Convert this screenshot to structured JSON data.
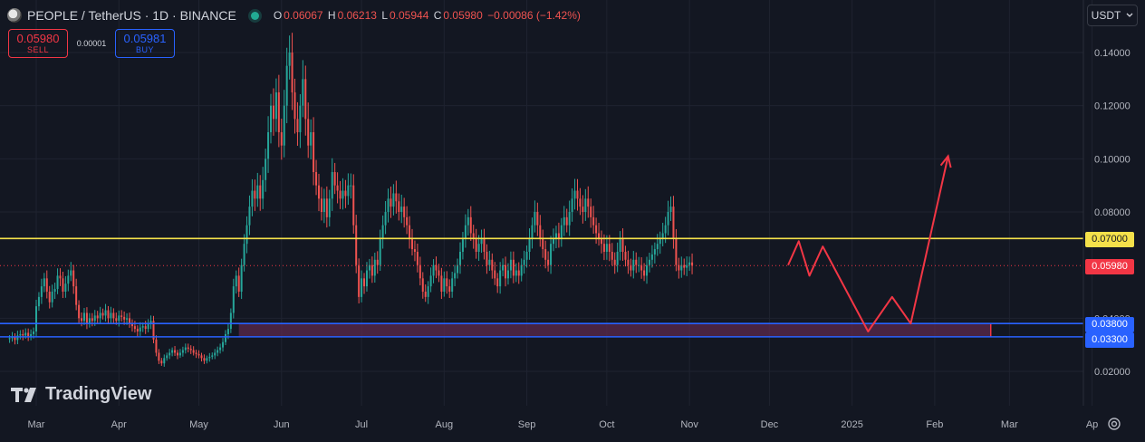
{
  "header": {
    "symbol_title": "PEOPLE / TetherUS · 1D · BINANCE",
    "ohlc": {
      "o_label": "O",
      "o_value": "0.06067",
      "h_label": "H",
      "h_value": "0.06213",
      "l_label": "L",
      "l_value": "0.05944",
      "c_label": "C",
      "c_value": "0.05980",
      "change": "−0.00086 (−1.42%)"
    }
  },
  "trade_panel": {
    "sell_price": "0.05980",
    "sell_label": "SELL",
    "spread": "0.00001",
    "buy_price": "0.05981",
    "buy_label": "BUY"
  },
  "currency_selector": {
    "value": "USDT"
  },
  "branding": {
    "name": "TradingView"
  },
  "price_tags": {
    "resistance": "0.07000",
    "current": "0.05980",
    "support_top": "0.03800",
    "support_bottom": "0.03300"
  },
  "colors": {
    "background": "#131722",
    "up": "#26a69a",
    "down": "#ef5350",
    "resistance_line": "#f5e14a",
    "support_line": "#2962ff",
    "arrow": "#f23645",
    "zone_fill": "#5c2a4c"
  },
  "chart_data": {
    "type": "candlestick",
    "title": "PEOPLE / TetherUS · 1D · BINANCE",
    "ylim": [
      0.013,
      0.152
    ],
    "y_ticks": [
      0.02,
      0.04,
      0.08,
      0.1,
      0.12,
      0.14
    ],
    "y_tick_labels": [
      "0.02000",
      "0.04000",
      "0.08000",
      "0.10000",
      "0.12000",
      "0.14000"
    ],
    "x_range": [
      "2024-02-20",
      "2025-04-10"
    ],
    "x_ticks": [
      {
        "date": "2024-03-01",
        "label": "Mar"
      },
      {
        "date": "2024-04-01",
        "label": "Apr"
      },
      {
        "date": "2024-05-01",
        "label": "May"
      },
      {
        "date": "2024-06-01",
        "label": "Jun"
      },
      {
        "date": "2024-07-01",
        "label": "Jul"
      },
      {
        "date": "2024-08-01",
        "label": "Aug"
      },
      {
        "date": "2024-09-01",
        "label": "Sep"
      },
      {
        "date": "2024-10-01",
        "label": "Oct"
      },
      {
        "date": "2024-11-01",
        "label": "Nov"
      },
      {
        "date": "2024-12-01",
        "label": "Dec"
      },
      {
        "date": "2025-01-01",
        "label": "2025"
      },
      {
        "date": "2025-02-01",
        "label": "Feb"
      },
      {
        "date": "2025-03-01",
        "label": "Mar"
      },
      {
        "date": "2025-04-01",
        "label": "Ap"
      }
    ],
    "close_series": {
      "start": "2024-02-20",
      "interval": "1D",
      "values": [
        0.0325,
        0.033,
        0.0318,
        0.0335,
        0.034,
        0.0335,
        0.0345,
        0.0332,
        0.034,
        0.035,
        0.0445,
        0.048,
        0.052,
        0.055,
        0.05,
        0.046,
        0.05,
        0.051,
        0.056,
        0.055,
        0.05,
        0.053,
        0.056,
        0.058,
        0.052,
        0.045,
        0.04,
        0.039,
        0.042,
        0.038,
        0.04,
        0.039,
        0.041,
        0.04,
        0.042,
        0.041,
        0.043,
        0.04,
        0.042,
        0.04,
        0.039,
        0.041,
        0.0405,
        0.0395,
        0.04,
        0.038,
        0.037,
        0.036,
        0.035,
        0.0365,
        0.037,
        0.036,
        0.038,
        0.039,
        0.032,
        0.027,
        0.024,
        0.023,
        0.025,
        0.026,
        0.027,
        0.028,
        0.027,
        0.026,
        0.027,
        0.028,
        0.029,
        0.0285,
        0.028,
        0.027,
        0.0265,
        0.026,
        0.025,
        0.024,
        0.025,
        0.0255,
        0.026,
        0.027,
        0.028,
        0.029,
        0.031,
        0.034,
        0.036,
        0.042,
        0.052,
        0.056,
        0.05,
        0.06,
        0.068,
        0.075,
        0.082,
        0.088,
        0.085,
        0.09,
        0.085,
        0.092,
        0.1,
        0.11,
        0.12,
        0.115,
        0.125,
        0.11,
        0.105,
        0.12,
        0.135,
        0.14,
        0.125,
        0.115,
        0.11,
        0.12,
        0.13,
        0.115,
        0.105,
        0.11,
        0.095,
        0.09,
        0.085,
        0.08,
        0.085,
        0.078,
        0.085,
        0.095,
        0.09,
        0.088,
        0.085,
        0.088,
        0.086,
        0.09,
        0.09,
        0.075,
        0.06,
        0.048,
        0.055,
        0.052,
        0.058,
        0.06,
        0.056,
        0.062,
        0.06,
        0.07,
        0.075,
        0.08,
        0.085,
        0.082,
        0.087,
        0.084,
        0.08,
        0.082,
        0.078,
        0.075,
        0.07,
        0.066,
        0.065,
        0.06,
        0.055,
        0.05,
        0.048,
        0.052,
        0.056,
        0.06,
        0.058,
        0.056,
        0.05,
        0.055,
        0.052,
        0.05,
        0.055,
        0.057,
        0.06,
        0.065,
        0.07,
        0.075,
        0.078,
        0.072,
        0.07,
        0.065,
        0.068,
        0.07,
        0.065,
        0.06,
        0.062,
        0.058,
        0.055,
        0.052,
        0.058,
        0.06,
        0.055,
        0.058,
        0.062,
        0.056,
        0.058,
        0.056,
        0.06,
        0.062,
        0.065,
        0.07,
        0.075,
        0.08,
        0.075,
        0.07,
        0.066,
        0.062,
        0.06,
        0.068,
        0.07,
        0.072,
        0.07,
        0.075,
        0.078,
        0.075,
        0.08,
        0.085,
        0.088,
        0.085,
        0.082,
        0.08,
        0.085,
        0.082,
        0.078,
        0.075,
        0.072,
        0.07,
        0.068,
        0.065,
        0.068,
        0.065,
        0.062,
        0.06,
        0.065,
        0.07,
        0.065,
        0.062,
        0.06,
        0.058,
        0.062,
        0.06,
        0.06,
        0.058,
        0.056,
        0.06,
        0.062,
        0.064,
        0.066,
        0.068,
        0.07,
        0.072,
        0.075,
        0.08,
        0.082,
        0.07,
        0.06,
        0.058,
        0.06,
        0.059,
        0.06,
        0.061,
        0.0598
      ]
    },
    "levels": [
      {
        "name": "resistance",
        "value": 0.07
      },
      {
        "name": "support_top",
        "value": 0.038
      },
      {
        "name": "support_bottom",
        "value": 0.033
      },
      {
        "name": "last_price",
        "value": 0.0598
      }
    ],
    "support_zone": {
      "from": 0.033,
      "to": 0.038,
      "start": "2024-05-16",
      "end": "2025-02-22"
    },
    "projection_path": [
      {
        "date": "2024-12-08",
        "price": 0.06
      },
      {
        "date": "2024-12-12",
        "price": 0.069
      },
      {
        "date": "2024-12-16",
        "price": 0.056
      },
      {
        "date": "2024-12-21",
        "price": 0.067
      },
      {
        "date": "2025-01-07",
        "price": 0.035
      },
      {
        "date": "2025-01-16",
        "price": 0.048
      },
      {
        "date": "2025-01-23",
        "price": 0.038
      },
      {
        "date": "2025-02-06",
        "price": 0.101
      },
      {
        "date": "2025-02-10",
        "price": 0.098
      }
    ],
    "grid": true
  }
}
